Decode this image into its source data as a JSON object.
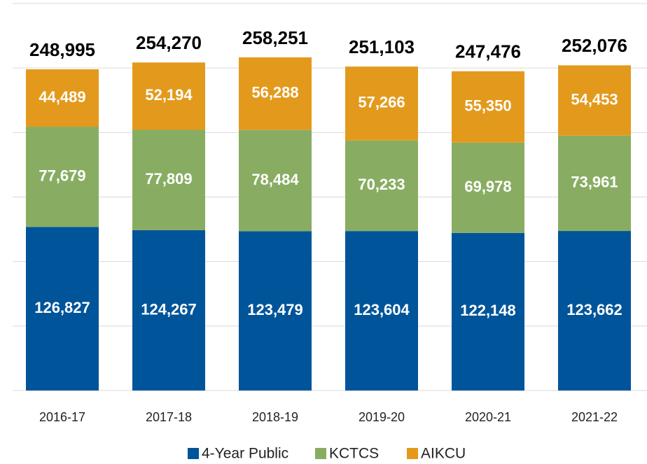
{
  "chart_data": {
    "type": "stacked_bar",
    "categories": [
      "2016-17",
      "2017-18",
      "2018-19",
      "2019-20",
      "2020-21",
      "2021-22"
    ],
    "series": [
      {
        "name": "4-Year Public",
        "color": "#00549a",
        "values": [
          126827,
          124267,
          123479,
          123604,
          122148,
          123662
        ],
        "value_labels": [
          "126,827",
          "124,267",
          "123,479",
          "123,604",
          "122,148",
          "123,662"
        ]
      },
      {
        "name": "KCTCS",
        "color": "#88ad62",
        "values": [
          77679,
          77809,
          78484,
          70233,
          69978,
          73961
        ],
        "value_labels": [
          "77,679",
          "77,809",
          "78,484",
          "70,233",
          "69,978",
          "73,961"
        ]
      },
      {
        "name": "AIKCU",
        "color": "#e39a1c",
        "values": [
          44489,
          52194,
          56288,
          57266,
          55350,
          54453
        ],
        "value_labels": [
          "44,489",
          "52,194",
          "56,288",
          "57,266",
          "55,350",
          "54,453"
        ]
      }
    ],
    "totals": [
      248995,
      254270,
      258251,
      251103,
      247476,
      252076
    ],
    "total_labels": [
      "248,995",
      "254,270",
      "258,251",
      "251,103",
      "247,476",
      "252,076"
    ],
    "ylim": [
      0,
      300000
    ],
    "yticks": [
      0,
      50000,
      100000,
      150000,
      200000,
      250000,
      300000
    ],
    "grid": true,
    "legend": "bottom"
  }
}
